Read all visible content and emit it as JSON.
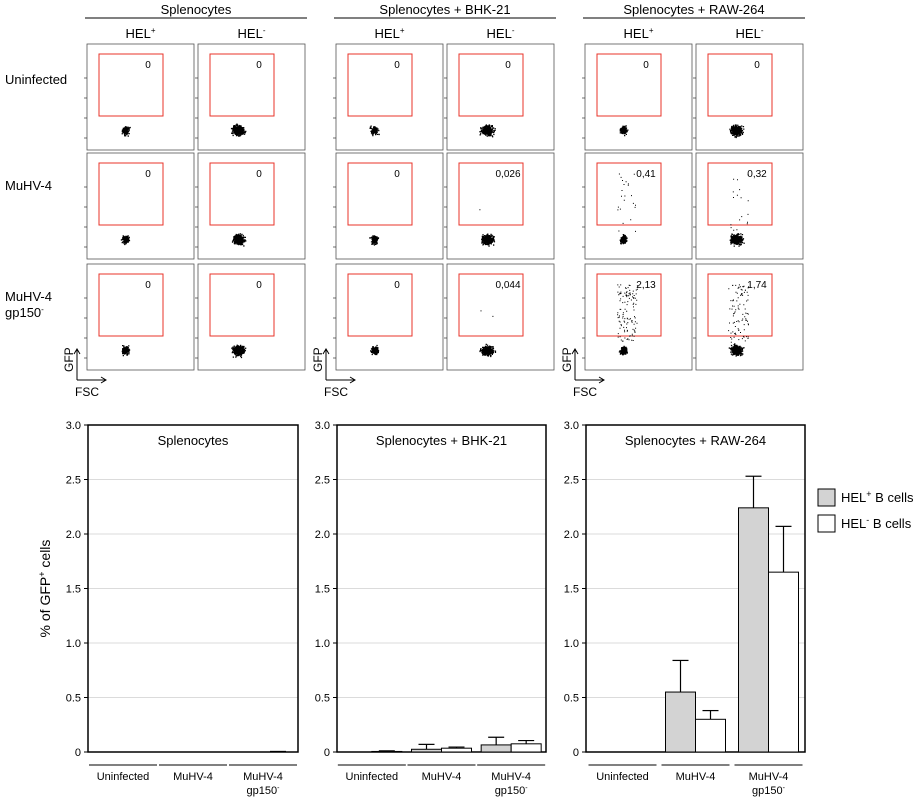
{
  "flow": {
    "groups": [
      "Splenocytes",
      "Splenocytes + BHK-21",
      "Splenocytes + RAW-264"
    ],
    "column_labels": [
      {
        "base": "HEL",
        "sup": "+"
      },
      {
        "base": "HEL",
        "sup": "-"
      }
    ],
    "row_labels": [
      {
        "lines": [
          {
            "text": "Uninfected",
            "sup": ""
          }
        ]
      },
      {
        "lines": [
          {
            "text": "MuHV-4",
            "sup": ""
          }
        ]
      },
      {
        "lines": [
          {
            "text": "MuHV-4",
            "sup": ""
          },
          {
            "text": "gp150",
            "sup": "-"
          }
        ]
      }
    ],
    "gate_values": [
      [
        [
          "0",
          "0"
        ],
        [
          "0",
          "0"
        ],
        [
          "0",
          "0"
        ]
      ],
      [
        [
          "0",
          "0"
        ],
        [
          "0",
          "0,026"
        ],
        [
          "0,41",
          "0,32"
        ]
      ],
      [
        [
          "0",
          "0"
        ],
        [
          "0",
          "0,044"
        ],
        [
          "2,13",
          "1,74"
        ]
      ]
    ],
    "axis_y": "GFP",
    "axis_x": "FSC",
    "gate_color": "#e8332a"
  },
  "chart_data": [
    {
      "type": "bar",
      "title": "Splenocytes",
      "ylabel": {
        "pre": "% of GFP",
        "sup": "+",
        "post": " cells"
      },
      "ylim": [
        0,
        3.0
      ],
      "yticks": [
        "0",
        "0.5",
        "1.0",
        "1.5",
        "2.0",
        "2.5",
        "3.0"
      ],
      "grid": true,
      "categories": [
        {
          "lines": [
            {
              "text": "Uninfected",
              "sup": ""
            }
          ]
        },
        {
          "lines": [
            {
              "text": "MuHV-4",
              "sup": ""
            }
          ]
        },
        {
          "lines": [
            {
              "text": "MuHV-4",
              "sup": ""
            },
            {
              "text": "gp150",
              "sup": "-"
            }
          ]
        }
      ],
      "series": [
        {
          "values": [
            0.0,
            0.0,
            0.0
          ],
          "errors": [
            0.0,
            0.0,
            0.0
          ],
          "color": "#d3d3d3"
        },
        {
          "values": [
            0.0,
            0.0,
            0.0
          ],
          "errors": [
            0.0,
            0.0,
            0.005
          ],
          "color": "#ffffff"
        }
      ]
    },
    {
      "type": "bar",
      "title": "Splenocytes + BHK-21",
      "ylim": [
        0,
        3.0
      ],
      "yticks": [
        "0",
        "0.5",
        "1.0",
        "1.5",
        "2.0",
        "2.5",
        "3.0"
      ],
      "grid": true,
      "categories": [
        {
          "lines": [
            {
              "text": "Uninfected",
              "sup": ""
            }
          ]
        },
        {
          "lines": [
            {
              "text": "MuHV-4",
              "sup": ""
            }
          ]
        },
        {
          "lines": [
            {
              "text": "MuHV-4",
              "sup": ""
            },
            {
              "text": "gp150",
              "sup": "-"
            }
          ]
        }
      ],
      "series": [
        {
          "values": [
            0.0,
            0.025,
            0.065
          ],
          "errors": [
            0.0,
            0.045,
            0.07
          ],
          "color": "#d3d3d3"
        },
        {
          "values": [
            0.005,
            0.035,
            0.075
          ],
          "errors": [
            0.005,
            0.01,
            0.03
          ],
          "color": "#ffffff"
        }
      ]
    },
    {
      "type": "bar",
      "title": "Splenocytes + RAW-264",
      "ylim": [
        0,
        3.0
      ],
      "yticks": [
        "0",
        "0.5",
        "1.0",
        "1.5",
        "2.0",
        "2.5",
        "3.0"
      ],
      "grid": true,
      "categories": [
        {
          "lines": [
            {
              "text": "Uninfected",
              "sup": ""
            }
          ]
        },
        {
          "lines": [
            {
              "text": "MuHV-4",
              "sup": ""
            }
          ]
        },
        {
          "lines": [
            {
              "text": "MuHV-4",
              "sup": ""
            },
            {
              "text": "gp150",
              "sup": "-"
            }
          ]
        }
      ],
      "series": [
        {
          "values": [
            0.0,
            0.55,
            2.24
          ],
          "errors": [
            0.0,
            0.29,
            0.29
          ],
          "color": "#d3d3d3"
        },
        {
          "values": [
            0.0,
            0.3,
            1.65
          ],
          "errors": [
            0.0,
            0.08,
            0.42
          ],
          "color": "#ffffff"
        }
      ]
    }
  ],
  "legend": {
    "position": "right",
    "items": [
      {
        "pre": "HEL",
        "sup": "+",
        "post": " B cells",
        "color": "#d3d3d3"
      },
      {
        "pre": "HEL",
        "sup": "-",
        "post": " B cells",
        "color": "#ffffff"
      }
    ]
  }
}
